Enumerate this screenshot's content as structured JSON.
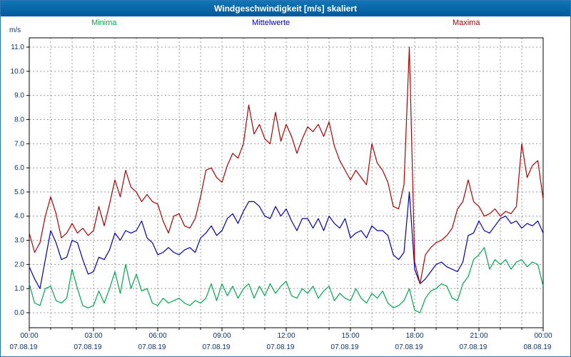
{
  "window": {
    "title": "Windgeschwindigkeit [m/s] skaliert"
  },
  "colors": {
    "titlebar": "#02589b",
    "titlebar_text": "#ffffff",
    "window_border": "#2e75b6",
    "background": "#ffffff",
    "plot_border": "#000000",
    "grid": "#999999",
    "axis_text": "#0d3268"
  },
  "chart_data": {
    "type": "line",
    "title": "Windgeschwindigkeit [m/s] skaliert",
    "xlabel": "",
    "ylabel": "m/s",
    "ylim": [
      -0.65,
      11.4
    ],
    "grid": "dashed; vertical line every hour, horizontal line every 1.0 m/s",
    "legend_position": "top",
    "x_start": "07.08.19 00:00",
    "x_end": "08.08.19 00:00",
    "interval_minutes": 15,
    "y_ticks": [
      "0.0",
      "1.0",
      "2.0",
      "3.0",
      "4.0",
      "5.0",
      "6.0",
      "7.0",
      "8.0",
      "9.0",
      "10.0",
      "11.0"
    ],
    "x_ticks": [
      {
        "time": "00:00",
        "date": "07.08.19"
      },
      {
        "time": "03:00",
        "date": "07.08.19"
      },
      {
        "time": "06:00",
        "date": "07.08.19"
      },
      {
        "time": "09:00",
        "date": "07.08.19"
      },
      {
        "time": "12:00",
        "date": "07.08.19"
      },
      {
        "time": "15:00",
        "date": "07.08.19"
      },
      {
        "time": "18:00",
        "date": "07.08.19"
      },
      {
        "time": "21:00",
        "date": "07.08.19"
      },
      {
        "time": "00:00",
        "date": "08.08.19"
      }
    ],
    "series": [
      {
        "name": "Minima",
        "color": "#00a84e",
        "values": [
          1.2,
          0.4,
          0.3,
          1.0,
          1.1,
          0.5,
          0.4,
          0.6,
          1.8,
          1.0,
          0.3,
          0.2,
          0.3,
          0.9,
          0.4,
          1.0,
          1.7,
          0.8,
          2.0,
          1.0,
          1.6,
          0.9,
          1.0,
          0.4,
          0.3,
          0.6,
          0.4,
          0.5,
          0.6,
          0.4,
          0.3,
          0.5,
          0.4,
          0.6,
          1.2,
          0.5,
          1.2,
          0.7,
          1.1,
          0.6,
          1.0,
          1.2,
          0.6,
          1.1,
          0.7,
          1.2,
          0.8,
          1.1,
          1.3,
          0.7,
          0.6,
          1.0,
          0.8,
          1.1,
          0.6,
          0.9,
          1.1,
          0.5,
          0.8,
          0.6,
          0.5,
          1.0,
          0.6,
          0.4,
          0.8,
          0.6,
          0.9,
          0.4,
          0.2,
          0.3,
          0.5,
          1.0,
          0.1,
          0.0,
          0.6,
          0.9,
          1.0,
          1.2,
          1.1,
          0.6,
          0.5,
          1.2,
          1.5,
          2.2,
          2.4,
          2.7,
          1.8,
          2.2,
          2.0,
          2.2,
          1.8,
          2.1,
          2.2,
          1.9,
          2.1,
          2.0,
          1.1
        ]
      },
      {
        "name": "Mittelwerte",
        "color": "#0000b0",
        "values": [
          1.9,
          1.4,
          1.0,
          2.2,
          3.4,
          2.9,
          2.2,
          2.3,
          3.0,
          2.9,
          2.2,
          1.6,
          1.7,
          2.3,
          2.2,
          2.6,
          3.3,
          3.0,
          3.4,
          3.3,
          3.4,
          3.8,
          3.1,
          2.9,
          2.4,
          2.5,
          2.7,
          2.5,
          2.4,
          2.6,
          2.7,
          2.5,
          3.1,
          3.3,
          3.6,
          3.2,
          3.4,
          3.9,
          4.1,
          3.7,
          4.2,
          4.6,
          4.6,
          4.4,
          4.0,
          3.9,
          4.4,
          4.0,
          4.3,
          3.8,
          3.4,
          3.9,
          3.9,
          3.5,
          3.9,
          3.4,
          4.0,
          3.7,
          3.5,
          3.9,
          3.1,
          3.3,
          3.4,
          3.1,
          3.6,
          3.4,
          3.4,
          3.2,
          2.4,
          2.2,
          2.5,
          5.0,
          1.8,
          1.2,
          1.4,
          1.7,
          2.0,
          2.1,
          1.9,
          1.8,
          1.7,
          2.1,
          3.2,
          3.3,
          3.8,
          3.4,
          3.3,
          3.6,
          3.9,
          4.0,
          3.7,
          3.8,
          3.5,
          3.7,
          3.6,
          3.8,
          3.3
        ]
      },
      {
        "name": "Maxima",
        "color": "#b00000",
        "values": [
          3.3,
          2.5,
          2.9,
          4.0,
          4.8,
          4.1,
          3.1,
          3.3,
          3.7,
          3.3,
          3.5,
          3.2,
          3.4,
          4.4,
          3.6,
          4.5,
          5.5,
          4.8,
          5.9,
          5.2,
          5.0,
          4.6,
          4.9,
          4.6,
          4.5,
          3.8,
          3.3,
          4.0,
          4.1,
          3.6,
          3.5,
          3.9,
          4.8,
          5.9,
          6.0,
          5.6,
          5.4,
          6.1,
          6.6,
          6.4,
          7.0,
          8.6,
          7.4,
          7.8,
          7.2,
          7.0,
          8.3,
          7.1,
          7.8,
          7.3,
          6.6,
          7.2,
          7.7,
          7.5,
          7.8,
          7.3,
          7.9,
          6.9,
          6.3,
          5.9,
          5.5,
          5.9,
          5.6,
          5.3,
          7.0,
          6.2,
          5.9,
          5.4,
          4.4,
          4.3,
          5.3,
          11.0,
          2.1,
          1.2,
          2.4,
          2.7,
          2.9,
          3.0,
          3.2,
          3.5,
          4.3,
          4.6,
          5.5,
          4.6,
          4.4,
          4.0,
          4.1,
          4.3,
          4.0,
          4.2,
          4.1,
          4.4,
          7.0,
          5.6,
          6.1,
          6.3,
          4.7
        ]
      }
    ]
  }
}
